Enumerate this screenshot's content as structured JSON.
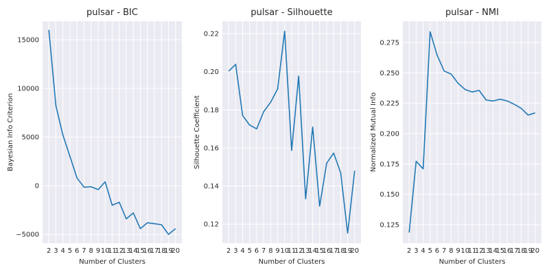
{
  "chart_data": [
    {
      "type": "line",
      "title": "pulsar - BIC",
      "xlabel": "Number of Clusters",
      "ylabel": "Bayesian Info Criterion",
      "x": [
        2,
        3,
        4,
        5,
        6,
        7,
        8,
        9,
        10,
        11,
        12,
        13,
        14,
        15,
        16,
        17,
        18,
        19,
        20
      ],
      "xticks": [
        "2",
        "3",
        "4",
        "5",
        "6",
        "7",
        "8",
        "9",
        "10",
        "11",
        "12",
        "13",
        "14",
        "15",
        "16",
        "17",
        "18",
        "19",
        "20"
      ],
      "yticks": [
        -5000,
        0,
        5000,
        10000,
        15000
      ],
      "ytick_labels": [
        "−5000",
        "0",
        "5000",
        "10000",
        "15000"
      ],
      "xlim": [
        1.1,
        20.9
      ],
      "ylim": [
        -5900,
        16900
      ],
      "grid": true,
      "series": [
        {
          "color": "#1f77b4",
          "values": [
            16000,
            8200,
            5200,
            3000,
            800,
            -150,
            -100,
            -400,
            400,
            -2000,
            -1700,
            -3400,
            -2800,
            -4400,
            -3800,
            -3900,
            -4000,
            -5000,
            -4400
          ]
        }
      ]
    },
    {
      "type": "line",
      "title": "pulsar - Silhouette",
      "xlabel": "Number of Clusters",
      "ylabel": "Silhouette Coefficient",
      "x": [
        2,
        3,
        4,
        5,
        6,
        7,
        8,
        9,
        10,
        11,
        12,
        13,
        14,
        15,
        16,
        17,
        18,
        19,
        20
      ],
      "xticks": [
        "2",
        "3",
        "4",
        "5",
        "6",
        "7",
        "8",
        "9",
        "10",
        "11",
        "12",
        "13",
        "14",
        "15",
        "16",
        "17",
        "18",
        "19",
        "20"
      ],
      "yticks": [
        0.12,
        0.14,
        0.16,
        0.18,
        0.2,
        0.22
      ],
      "ytick_labels": [
        "0.12",
        "0.14",
        "0.16",
        "0.18",
        "0.20",
        "0.22"
      ],
      "xlim": [
        1.1,
        20.9
      ],
      "ylim": [
        0.11,
        0.2265
      ],
      "grid": true,
      "series": [
        {
          "color": "#1f77b4",
          "values": [
            0.2003,
            0.2039,
            0.177,
            0.172,
            0.17,
            0.179,
            0.184,
            0.191,
            0.2213,
            0.1587,
            0.1977,
            0.1333,
            0.171,
            0.1294,
            0.152,
            0.1573,
            0.147,
            0.1153,
            0.148
          ]
        }
      ]
    },
    {
      "type": "line",
      "title": "pulsar - NMI",
      "xlabel": "Number of Clusters",
      "ylabel": "Normalized Mutual Info",
      "x": [
        2,
        3,
        4,
        5,
        6,
        7,
        8,
        9,
        10,
        11,
        12,
        13,
        14,
        15,
        16,
        17,
        18,
        19,
        20
      ],
      "xticks": [
        "2",
        "3",
        "4",
        "5",
        "6",
        "7",
        "8",
        "9",
        "10",
        "11",
        "12",
        "13",
        "14",
        "15",
        "16",
        "17",
        "18",
        "19",
        "20"
      ],
      "yticks": [
        0.125,
        0.15,
        0.175,
        0.2,
        0.225,
        0.25,
        0.275
      ],
      "ytick_labels": [
        "0.125",
        "0.150",
        "0.175",
        "0.200",
        "0.225",
        "0.250",
        "0.275"
      ],
      "xlim": [
        1.1,
        20.9
      ],
      "ylim": [
        0.1097,
        0.2925
      ],
      "grid": true,
      "series": [
        {
          "color": "#1f77b4",
          "values": [
            0.1185,
            0.1772,
            0.171,
            0.2838,
            0.2645,
            0.2515,
            0.249,
            0.2413,
            0.2363,
            0.2342,
            0.2355,
            0.2276,
            0.2268,
            0.2283,
            0.2268,
            0.2241,
            0.2208,
            0.2152,
            0.217
          ]
        }
      ]
    }
  ]
}
